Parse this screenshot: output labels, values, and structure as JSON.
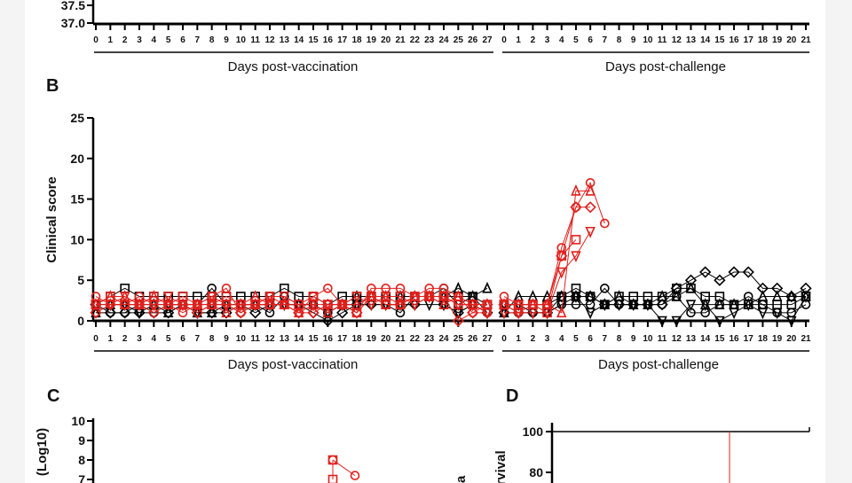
{
  "panels": {
    "B": "B",
    "C": "C",
    "D": "D"
  },
  "xlabels": {
    "vaccination": "Days post-vaccination",
    "challenge": "Days post-challenge"
  },
  "chart_data": [
    {
      "panel": "A",
      "type": "line",
      "ylabel": "",
      "yticks": [
        "37.0",
        "37.5"
      ],
      "ylim": [
        37.0,
        37.5
      ],
      "vax_days": [
        "0",
        "1",
        "2",
        "3",
        "4",
        "5",
        "6",
        "7",
        "8",
        "9",
        "10",
        "11",
        "12",
        "13",
        "14",
        "15",
        "16",
        "17",
        "18",
        "19",
        "20",
        "21",
        "22",
        "23",
        "24",
        "25",
        "26",
        "27"
      ],
      "challenge_days": [
        "0",
        "1",
        "2",
        "3",
        "4",
        "5",
        "6",
        "7",
        "8",
        "9",
        "10",
        "11",
        "12",
        "13",
        "14",
        "15",
        "16",
        "17",
        "18",
        "19",
        "20",
        "21"
      ]
    },
    {
      "panel": "B",
      "type": "line",
      "ylabel": "Clinical score",
      "ylim": [
        0,
        25
      ],
      "yticks": [
        "0",
        "5",
        "10",
        "15",
        "20",
        "25"
      ],
      "vax_days": [
        "0",
        "1",
        "2",
        "3",
        "4",
        "5",
        "6",
        "7",
        "8",
        "9",
        "10",
        "11",
        "12",
        "13",
        "14",
        "15",
        "16",
        "17",
        "18",
        "19",
        "20",
        "21",
        "22",
        "23",
        "24",
        "25",
        "26",
        "27"
      ],
      "challenge_days": [
        "0",
        "1",
        "2",
        "3",
        "4",
        "5",
        "6",
        "7",
        "8",
        "9",
        "10",
        "11",
        "12",
        "13",
        "14",
        "15",
        "16",
        "17",
        "18",
        "19",
        "20",
        "21"
      ],
      "colors": {
        "control": "#e0201c",
        "vaccinated": "#000000"
      },
      "series": [
        {
          "name": "red-circle",
          "group": "control",
          "marker": "circle",
          "vaccination": [
            3,
            2,
            2,
            3,
            2,
            2,
            1,
            2,
            3,
            4,
            1,
            2,
            3,
            2,
            1,
            3,
            4,
            2,
            1,
            4,
            4,
            4,
            3,
            4,
            4,
            3,
            1,
            1
          ],
          "challenge": [
            3,
            2,
            2,
            2,
            9,
            14,
            17,
            12
          ]
        },
        {
          "name": "red-triangle",
          "group": "control",
          "marker": "triangle",
          "vaccination": [
            2,
            3,
            3,
            2,
            3,
            2,
            2,
            2,
            2,
            1,
            2,
            3,
            2,
            2,
            1,
            2,
            1,
            2,
            2,
            3,
            3,
            2,
            3,
            3,
            2,
            3,
            2,
            2
          ],
          "challenge": [
            2,
            2,
            2,
            2,
            1,
            16,
            16
          ]
        },
        {
          "name": "red-diamond",
          "group": "control",
          "marker": "diamond",
          "vaccination": [
            1,
            2,
            2,
            2,
            1,
            2,
            2,
            1,
            2,
            2,
            1,
            2,
            2,
            2,
            1,
            1,
            2,
            2,
            1,
            3,
            2,
            2,
            3,
            3,
            3,
            0,
            1,
            2
          ],
          "challenge": [
            2,
            1,
            2,
            2,
            8,
            14,
            14
          ]
        },
        {
          "name": "red-down-triangle",
          "group": "control",
          "marker": "down-triangle",
          "vaccination": [
            2,
            2,
            3,
            2,
            2,
            3,
            2,
            2,
            3,
            2,
            2,
            2,
            3,
            3,
            2,
            2,
            2,
            2,
            3,
            2,
            3,
            3,
            2,
            3,
            3,
            2,
            2,
            1
          ],
          "challenge": [
            1,
            1,
            1,
            1,
            6,
            8,
            11
          ]
        },
        {
          "name": "red-square",
          "group": "control",
          "marker": "square",
          "vaccination": [
            2,
            3,
            2,
            2,
            3,
            2,
            3,
            2,
            2,
            3,
            2,
            2,
            2,
            2,
            2,
            3,
            2,
            2,
            1,
            3,
            2,
            2,
            3,
            3,
            3,
            2,
            2,
            2
          ],
          "challenge": [
            2,
            2,
            2,
            1,
            8,
            10
          ]
        },
        {
          "name": "black-circle",
          "group": "vaccinated",
          "marker": "circle",
          "vaccination": [
            1,
            1,
            1,
            2,
            1,
            2,
            2,
            2,
            4,
            2,
            1,
            2,
            1,
            3,
            2,
            2,
            1,
            2,
            2,
            3,
            2,
            1,
            3,
            3,
            4,
            2,
            3,
            1
          ],
          "challenge": [
            2,
            1,
            1,
            1,
            2,
            2,
            2,
            4,
            2,
            2,
            2,
            2,
            3,
            1,
            1,
            2,
            2,
            3,
            2,
            1,
            1,
            2
          ]
        },
        {
          "name": "black-square",
          "group": "vaccinated",
          "marker": "square",
          "vaccination": [
            2,
            3,
            4,
            3,
            3,
            3,
            3,
            3,
            3,
            3,
            3,
            3,
            3,
            4,
            3,
            3,
            2,
            3,
            3,
            3,
            3,
            3,
            3,
            3,
            3,
            3,
            3,
            2
          ],
          "challenge": [
            2,
            2,
            2,
            2,
            3,
            4,
            3,
            2,
            3,
            3,
            3,
            3,
            4,
            4,
            3,
            3,
            2,
            2,
            2,
            2,
            2,
            3
          ]
        },
        {
          "name": "black-triangle",
          "group": "vaccinated",
          "marker": "triangle",
          "vaccination": [
            1,
            2,
            2,
            2,
            2,
            1,
            2,
            1,
            1,
            2,
            2,
            2,
            2,
            2,
            2,
            2,
            1,
            2,
            3,
            3,
            3,
            3,
            3,
            3,
            3,
            4,
            3,
            4
          ],
          "challenge": [
            1,
            3,
            3,
            3,
            3,
            3,
            3,
            2,
            3,
            2,
            2,
            3,
            3,
            4,
            2,
            2,
            2,
            2,
            3,
            3,
            3,
            3
          ]
        },
        {
          "name": "black-diamond",
          "group": "vaccinated",
          "marker": "diamond",
          "vaccination": [
            2,
            1,
            1,
            1,
            1,
            1,
            2,
            1,
            1,
            1,
            2,
            1,
            2,
            2,
            2,
            1,
            0,
            1,
            2,
            2,
            2,
            2,
            2,
            3,
            2,
            1,
            2,
            1
          ],
          "challenge": [
            1,
            1,
            1,
            1,
            3,
            3,
            3,
            2,
            2,
            2,
            2,
            2,
            4,
            5,
            6,
            5,
            6,
            6,
            4,
            4,
            3,
            4
          ]
        },
        {
          "name": "black-down-triangle",
          "group": "vaccinated",
          "marker": "down-triangle",
          "vaccination": [
            2,
            2,
            2,
            1,
            2,
            2,
            2,
            1,
            2,
            2,
            2,
            2,
            2,
            2,
            2,
            2,
            1,
            2,
            2,
            2,
            2,
            2,
            2,
            2,
            2,
            1,
            2,
            1
          ],
          "challenge": [
            2,
            2,
            1,
            1,
            2,
            3,
            1,
            2,
            2,
            2,
            2,
            0,
            0,
            2,
            2,
            0,
            1,
            2,
            1,
            1,
            0,
            3
          ]
        }
      ]
    },
    {
      "panel": "C",
      "type": "line",
      "ylabel": "(Log10)",
      "ylim": [
        7,
        10
      ],
      "yticks": [
        "7",
        "8",
        "9",
        "10"
      ],
      "series": [
        {
          "name": "red-square",
          "group": "control",
          "marker": "square",
          "points": [
            [
              0,
              7.0
            ],
            [
              0,
              8.0
            ]
          ]
        },
        {
          "name": "red-circle",
          "group": "control",
          "marker": "circle",
          "points": [
            [
              0,
              8.0
            ],
            [
              1,
              7.2
            ]
          ]
        }
      ]
    },
    {
      "panel": "D",
      "type": "line",
      "ylabel": "rvival",
      "ylim": [
        80,
        100
      ],
      "yticks": [
        "80",
        "100"
      ],
      "series": [
        {
          "name": "vaccinated",
          "color": "#000000",
          "values": [
            100,
            100
          ]
        },
        {
          "name": "control-drop",
          "color": "#e0201c",
          "values": [
            100,
            80
          ]
        }
      ]
    }
  ],
  "c_right_label_fragment": "a"
}
